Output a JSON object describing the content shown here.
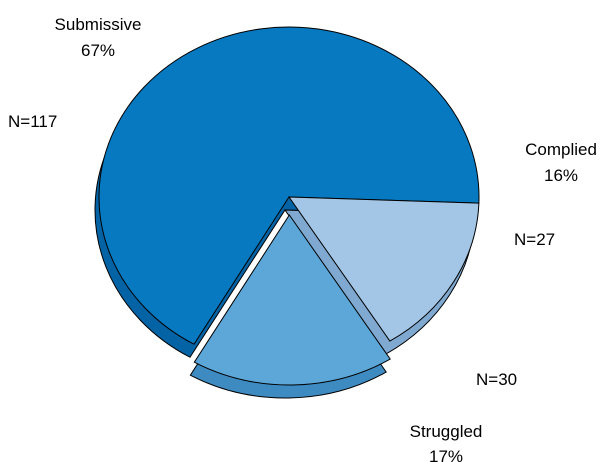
{
  "chart_data": {
    "type": "pie",
    "style": "3d-exploded",
    "slices": [
      {
        "name": "Submissive",
        "percent": "67%",
        "count": "N=117",
        "value": 117,
        "color": "#0679c1",
        "side_color": "#0463a5",
        "exploded": false
      },
      {
        "name": "Complied",
        "percent": "16%",
        "count": "N=27",
        "value": 27,
        "color": "#a3c6e6",
        "side_color": "#7fa9d0",
        "exploded": false
      },
      {
        "name": "Struggled",
        "percent": "17%",
        "count": "N=30",
        "value": 30,
        "color": "#5ca7d8",
        "side_color": "#3e8bc2",
        "exploded": true
      }
    ],
    "outline_color": "#000000",
    "legend": "none"
  }
}
